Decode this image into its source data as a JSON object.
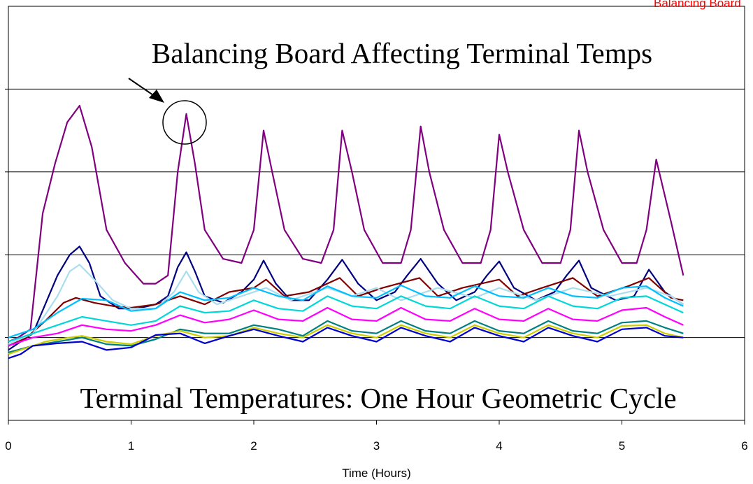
{
  "chart_data": {
    "type": "line",
    "xlabel": "Time (Hours)",
    "x_ticks": [
      "0",
      "1",
      "2",
      "3",
      "4",
      "5",
      "6"
    ],
    "xlim": [
      0,
      6
    ],
    "ylim": [
      -1,
      4
    ],
    "grid": "horizontal",
    "legend": "none",
    "annotations": {
      "top": "Balancing Board Affecting Terminal Temps",
      "bottom": "Terminal Temperatures:  One Hour Geometric Cycle",
      "corner": "Balancing Board"
    },
    "series": [
      {
        "color": "#800080",
        "x": [
          0,
          0.08,
          0.18,
          0.28,
          0.38,
          0.48,
          0.58,
          0.68,
          0.8,
          0.95,
          1.1,
          1.2,
          1.3,
          1.38,
          1.45,
          1.52,
          1.6,
          1.75,
          1.9,
          2.0,
          2.08,
          2.15,
          2.25,
          2.4,
          2.55,
          2.65,
          2.72,
          2.8,
          2.9,
          3.05,
          3.2,
          3.28,
          3.36,
          3.43,
          3.55,
          3.7,
          3.85,
          3.93,
          4.0,
          4.07,
          4.2,
          4.35,
          4.5,
          4.58,
          4.65,
          4.72,
          4.85,
          5.0,
          5.12,
          5.2,
          5.28,
          5.4,
          5.5
        ],
        "y": [
          -0.05,
          0,
          0.1,
          1.5,
          2.1,
          2.6,
          2.8,
          2.3,
          1.3,
          0.9,
          0.65,
          0.65,
          0.75,
          2.0,
          2.7,
          2.1,
          1.3,
          0.95,
          0.9,
          1.3,
          2.5,
          2.0,
          1.3,
          0.95,
          0.9,
          1.3,
          2.5,
          2.0,
          1.3,
          0.9,
          0.9,
          1.3,
          2.55,
          2.0,
          1.3,
          0.9,
          0.9,
          1.3,
          2.45,
          2.0,
          1.3,
          0.9,
          0.9,
          1.3,
          2.5,
          2.0,
          1.3,
          0.9,
          0.9,
          1.3,
          2.15,
          1.4,
          0.75
        ]
      },
      {
        "color": "#000080",
        "x": [
          0,
          0.1,
          0.2,
          0.3,
          0.4,
          0.5,
          0.58,
          0.66,
          0.75,
          0.9,
          1.05,
          1.2,
          1.3,
          1.38,
          1.45,
          1.52,
          1.6,
          1.75,
          1.9,
          2.0,
          2.08,
          2.18,
          2.3,
          2.45,
          2.6,
          2.72,
          2.85,
          3.0,
          3.15,
          3.25,
          3.36,
          3.5,
          3.65,
          3.8,
          3.9,
          4.0,
          4.12,
          4.3,
          4.45,
          4.55,
          4.65,
          4.75,
          4.95,
          5.1,
          5.22,
          5.35,
          5.5
        ],
        "y": [
          -0.15,
          -0.05,
          0.05,
          0.4,
          0.75,
          1.0,
          1.1,
          0.9,
          0.5,
          0.35,
          0.35,
          0.4,
          0.5,
          0.85,
          1.03,
          0.8,
          0.5,
          0.42,
          0.55,
          0.7,
          0.93,
          0.65,
          0.45,
          0.45,
          0.7,
          0.94,
          0.65,
          0.45,
          0.55,
          0.75,
          0.95,
          0.65,
          0.45,
          0.55,
          0.75,
          0.92,
          0.6,
          0.45,
          0.55,
          0.75,
          0.93,
          0.6,
          0.45,
          0.5,
          0.82,
          0.55,
          0.4
        ]
      },
      {
        "color": "#800000",
        "x": [
          0,
          0.15,
          0.3,
          0.45,
          0.55,
          0.7,
          0.85,
          1.0,
          1.2,
          1.4,
          1.6,
          1.8,
          2.0,
          2.1,
          2.25,
          2.45,
          2.7,
          2.85,
          3.05,
          3.35,
          3.5,
          3.7,
          4.0,
          4.15,
          4.35,
          4.6,
          4.8,
          5.05,
          5.22,
          5.4,
          5.5
        ],
        "y": [
          -0.1,
          0,
          0.2,
          0.42,
          0.48,
          0.42,
          0.38,
          0.36,
          0.4,
          0.5,
          0.4,
          0.55,
          0.6,
          0.7,
          0.5,
          0.55,
          0.72,
          0.5,
          0.6,
          0.72,
          0.5,
          0.6,
          0.7,
          0.5,
          0.6,
          0.72,
          0.5,
          0.62,
          0.72,
          0.48,
          0.45
        ]
      },
      {
        "color": "#aaddee",
        "x": [
          0,
          0.2,
          0.4,
          0.5,
          0.58,
          0.7,
          0.85,
          1.0,
          1.2,
          1.35,
          1.45,
          1.55,
          1.7,
          1.9,
          2.1,
          2.3,
          2.6,
          2.8,
          3.0,
          3.2,
          3.5,
          3.8,
          4.0,
          4.3,
          4.6,
          4.9,
          5.2,
          5.4,
          5.5
        ],
        "y": [
          -0.08,
          0.05,
          0.5,
          0.8,
          0.88,
          0.7,
          0.45,
          0.35,
          0.35,
          0.55,
          0.8,
          0.55,
          0.4,
          0.5,
          0.6,
          0.45,
          0.6,
          0.5,
          0.6,
          0.45,
          0.6,
          0.48,
          0.6,
          0.45,
          0.6,
          0.5,
          0.6,
          0.5,
          0.4
        ]
      },
      {
        "color": "#00bfff",
        "x": [
          0,
          0.2,
          0.4,
          0.6,
          0.8,
          1.0,
          1.2,
          1.4,
          1.6,
          1.8,
          2.0,
          2.2,
          2.4,
          2.6,
          2.8,
          3.0,
          3.2,
          3.4,
          3.6,
          3.8,
          4.0,
          4.2,
          4.4,
          4.6,
          4.8,
          5.0,
          5.2,
          5.35,
          5.5
        ],
        "y": [
          0,
          0.1,
          0.3,
          0.47,
          0.45,
          0.32,
          0.35,
          0.55,
          0.45,
          0.48,
          0.6,
          0.5,
          0.45,
          0.62,
          0.5,
          0.48,
          0.63,
          0.5,
          0.48,
          0.62,
          0.5,
          0.48,
          0.6,
          0.5,
          0.48,
          0.6,
          0.62,
          0.48,
          0.38
        ]
      },
      {
        "color": "#00d7d7",
        "x": [
          0,
          0.2,
          0.4,
          0.6,
          0.8,
          1.0,
          1.2,
          1.4,
          1.6,
          1.8,
          2.0,
          2.2,
          2.4,
          2.6,
          2.8,
          3.0,
          3.2,
          3.4,
          3.6,
          3.8,
          4.0,
          4.2,
          4.4,
          4.6,
          4.8,
          5.0,
          5.2,
          5.35,
          5.5
        ],
        "y": [
          -0.05,
          0.05,
          0.15,
          0.25,
          0.2,
          0.15,
          0.2,
          0.38,
          0.3,
          0.32,
          0.45,
          0.35,
          0.32,
          0.5,
          0.38,
          0.35,
          0.5,
          0.38,
          0.35,
          0.5,
          0.38,
          0.35,
          0.5,
          0.38,
          0.35,
          0.48,
          0.5,
          0.4,
          0.3
        ]
      },
      {
        "color": "#ff00ff",
        "x": [
          0,
          0.2,
          0.4,
          0.6,
          0.8,
          1.0,
          1.2,
          1.4,
          1.6,
          1.8,
          2.0,
          2.2,
          2.4,
          2.6,
          2.8,
          3.0,
          3.2,
          3.4,
          3.6,
          3.8,
          4.0,
          4.2,
          4.4,
          4.6,
          4.8,
          5.0,
          5.2,
          5.35,
          5.5
        ],
        "y": [
          -0.1,
          0,
          0.05,
          0.15,
          0.1,
          0.08,
          0.15,
          0.27,
          0.18,
          0.22,
          0.33,
          0.22,
          0.2,
          0.36,
          0.22,
          0.2,
          0.36,
          0.22,
          0.2,
          0.35,
          0.22,
          0.2,
          0.35,
          0.22,
          0.2,
          0.33,
          0.36,
          0.25,
          0.15
        ]
      },
      {
        "color": "#008080",
        "x": [
          0,
          0.2,
          0.4,
          0.6,
          0.8,
          1.0,
          1.2,
          1.4,
          1.6,
          1.8,
          2.0,
          2.2,
          2.4,
          2.6,
          2.8,
          3.0,
          3.2,
          3.4,
          3.6,
          3.8,
          4.0,
          4.2,
          4.4,
          4.6,
          4.8,
          5.0,
          5.2,
          5.35,
          5.5
        ],
        "y": [
          -0.18,
          -0.1,
          -0.05,
          0,
          -0.08,
          -0.1,
          -0.02,
          0.1,
          0.05,
          0.05,
          0.15,
          0.1,
          0.02,
          0.2,
          0.08,
          0.05,
          0.2,
          0.08,
          0.05,
          0.2,
          0.08,
          0.05,
          0.2,
          0.08,
          0.05,
          0.18,
          0.2,
          0.12,
          0.05
        ]
      },
      {
        "color": "#cccc00",
        "x": [
          0,
          0.3,
          0.5,
          0.6,
          0.8,
          1.0,
          1.2,
          1.4,
          1.6,
          1.8,
          2.0,
          2.2,
          2.4,
          2.6,
          2.8,
          3.0,
          3.2,
          3.4,
          3.6,
          3.8,
          4.0,
          4.2,
          4.4,
          4.6,
          4.8,
          5.0,
          5.2,
          5.35,
          5.5
        ],
        "y": [
          -0.2,
          -0.05,
          0,
          0.02,
          -0.05,
          -0.08,
          0.02,
          0.08,
          0,
          0.02,
          0.12,
          0.05,
          0,
          0.15,
          0.05,
          0,
          0.15,
          0.05,
          0,
          0.15,
          0.05,
          0,
          0.15,
          0.05,
          0,
          0.14,
          0.15,
          0.05,
          0
        ]
      },
      {
        "color": "#0000cd",
        "x": [
          0,
          0.1,
          0.2,
          0.4,
          0.6,
          0.8,
          1.0,
          1.2,
          1.4,
          1.6,
          1.8,
          2.0,
          2.2,
          2.4,
          2.6,
          2.8,
          3.0,
          3.2,
          3.4,
          3.6,
          3.8,
          4.0,
          4.2,
          4.4,
          4.6,
          4.8,
          5.0,
          5.2,
          5.35,
          5.5
        ],
        "y": [
          -0.25,
          -0.2,
          -0.1,
          -0.07,
          -0.05,
          -0.15,
          -0.12,
          0.03,
          0.05,
          -0.07,
          0.02,
          0.1,
          0.02,
          -0.05,
          0.12,
          0.02,
          -0.05,
          0.12,
          0.02,
          -0.05,
          0.12,
          0.02,
          -0.05,
          0.12,
          0.02,
          -0.05,
          0.1,
          0.12,
          0.02,
          0
        ]
      }
    ]
  }
}
